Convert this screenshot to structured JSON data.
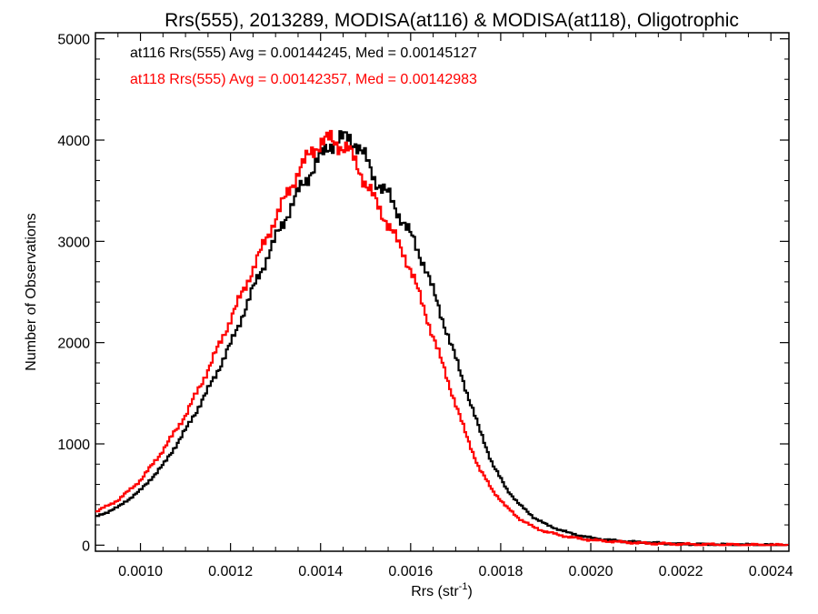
{
  "chart_data": {
    "type": "line",
    "title": "Rrs(555), 2013289, MODISA(at116) & MODISA(at118), Oligotrophic",
    "xlabel": "Rrs (str",
    "xlabel_sup": "-1",
    "xlabel_end": ")",
    "ylabel": "Number of Observations",
    "xlim": [
      0.0009,
      0.00244
    ],
    "ylim": [
      -60,
      5060
    ],
    "x_ticks": [
      0.001,
      0.0012,
      0.0014,
      0.0016,
      0.0018,
      0.002,
      0.0022,
      0.0024
    ],
    "x_tick_labels": [
      "0.0010",
      "0.0012",
      "0.0014",
      "0.0016",
      "0.0018",
      "0.0020",
      "0.0022",
      "0.0024"
    ],
    "y_ticks": [
      0,
      1000,
      2000,
      3000,
      4000,
      5000
    ],
    "y_tick_labels": [
      "0",
      "1000",
      "2000",
      "3000",
      "4000",
      "5000"
    ],
    "grid": false,
    "legend_position": "top-left",
    "series": [
      {
        "color": "#000000",
        "annotation": "at116 Rrs(555) Avg = 0.00144245, Med = 0.00145127",
        "x": [
          0.0009,
          0.00095,
          0.001,
          0.00105,
          0.0011,
          0.00115,
          0.0012,
          0.00125,
          0.0013,
          0.00135,
          0.0014,
          0.00142,
          0.00144,
          0.00146,
          0.00148,
          0.0015,
          0.00152,
          0.00155,
          0.00158,
          0.0016,
          0.00163,
          0.00166,
          0.00169,
          0.00172,
          0.00175,
          0.00178,
          0.00181,
          0.00184,
          0.00187,
          0.0019,
          0.00195,
          0.002,
          0.00205,
          0.0021,
          0.00215,
          0.0022,
          0.00225,
          0.0023,
          0.00235,
          0.0024,
          0.00244
        ],
        "y": [
          280,
          380,
          550,
          800,
          1150,
          1550,
          2000,
          2550,
          3050,
          3500,
          3850,
          3960,
          4000,
          4030,
          3950,
          3800,
          3600,
          3450,
          3200,
          3050,
          2750,
          2350,
          1950,
          1550,
          1150,
          800,
          560,
          400,
          280,
          200,
          120,
          70,
          45,
          30,
          20,
          10,
          8,
          5,
          3,
          2,
          1
        ]
      },
      {
        "color": "#ff0000",
        "annotation": "at118 Rrs(555) Avg = 0.00142357, Med = 0.00142983",
        "x": [
          0.0009,
          0.00095,
          0.001,
          0.00105,
          0.0011,
          0.00115,
          0.0012,
          0.00125,
          0.0013,
          0.00135,
          0.00138,
          0.0014,
          0.00142,
          0.00144,
          0.00146,
          0.00148,
          0.0015,
          0.00152,
          0.00155,
          0.00158,
          0.0016,
          0.00163,
          0.00166,
          0.00169,
          0.00172,
          0.00175,
          0.00178,
          0.00181,
          0.00184,
          0.00187,
          0.0019,
          0.00195,
          0.002,
          0.00205,
          0.0021,
          0.00215,
          0.0022,
          0.00225,
          0.0023,
          0.00235,
          0.0024,
          0.00244
        ],
        "y": [
          330,
          450,
          650,
          950,
          1300,
          1750,
          2250,
          2750,
          3250,
          3700,
          3900,
          3980,
          4010,
          3950,
          3900,
          3750,
          3550,
          3400,
          3150,
          2900,
          2700,
          2300,
          1900,
          1500,
          1100,
          760,
          540,
          380,
          260,
          180,
          130,
          80,
          50,
          35,
          22,
          15,
          10,
          7,
          5,
          3,
          2,
          1
        ]
      }
    ]
  }
}
